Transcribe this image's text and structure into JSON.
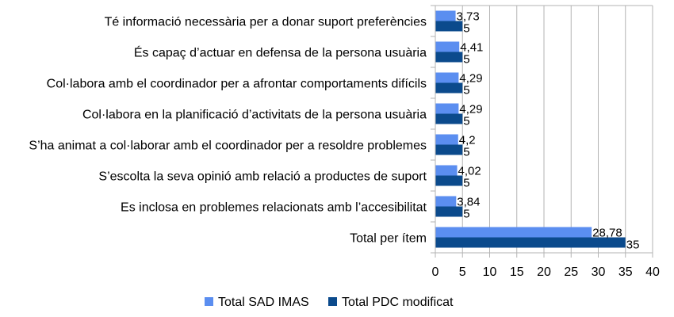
{
  "chart_data": {
    "type": "bar",
    "orientation": "horizontal",
    "categories": [
      "Té informació necessària per a donar suport preferències",
      "És capaç d’actuar en defensa de la persona usuària",
      "Col·labora amb el coordinador per a afrontar comportaments difícils",
      "Col·labora en la planificació d’activitats de la persona usuària",
      "S’ha animat a col·laborar amb el coordinador per a resoldre problemes",
      "S’escolta la seva opinió amb relació a productes de suport",
      "Es inclosa en problemes relacionats amb l’accesibilitat",
      "Total per ítem"
    ],
    "series": [
      {
        "name": "Total SAD IMAS",
        "values": [
          3.73,
          4.41,
          4.29,
          4.29,
          4.2,
          4.02,
          3.84,
          28.78
        ],
        "color": "#5b8ef0"
      },
      {
        "name": "Total PDC modificat",
        "values": [
          5,
          5,
          5,
          5,
          5,
          5,
          5,
          35
        ],
        "color": "#0b4a8c"
      }
    ],
    "data_labels": [
      [
        "3,73",
        "4,41",
        "4,29",
        "4,29",
        "4,2",
        "4,02",
        "3,84",
        "28,78"
      ],
      [
        "5",
        "5",
        "5",
        "5",
        "5",
        "5",
        "5",
        "35"
      ]
    ],
    "xlim": [
      0,
      40
    ],
    "x_ticks": [
      0,
      5,
      10,
      15,
      20,
      25,
      30,
      35,
      40
    ],
    "grid": "vertical",
    "legend_position": "bottom",
    "title": "",
    "xlabel": "",
    "ylabel": ""
  }
}
